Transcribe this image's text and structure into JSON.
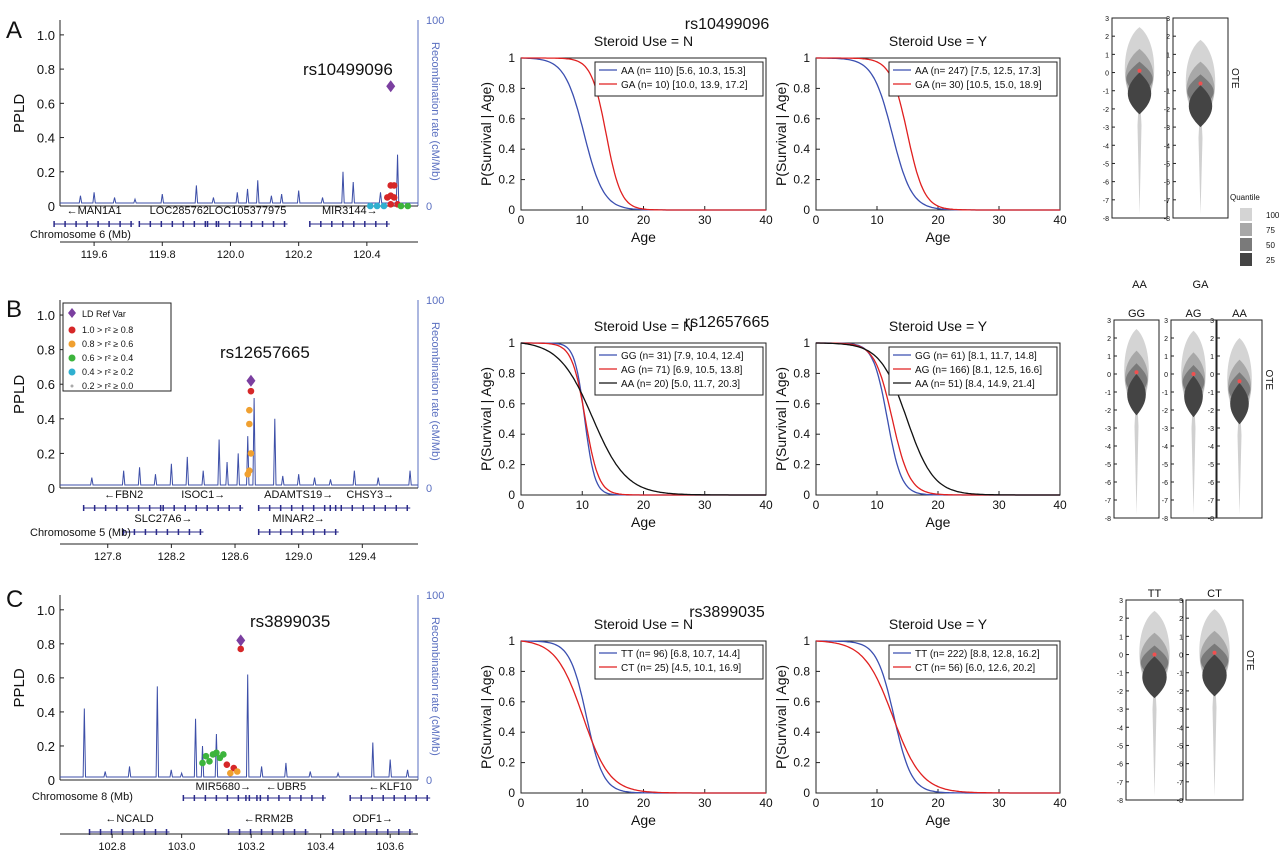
{
  "panels": [
    {
      "letter": "A",
      "snp": "rs10499096",
      "ld": {
        "ylabel": "PPLD",
        "y2label": "Recombination rate (cM/Mb)",
        "yticks": [
          "0",
          "0.2",
          "0.4",
          "0.6",
          "0.8",
          "1.0"
        ],
        "y2ticks": [
          "0",
          "100"
        ],
        "xticks": [
          "119.6",
          "119.8",
          "120.0",
          "120.2",
          "120.4"
        ],
        "xrange": [
          119.5,
          120.55
        ],
        "chrom_label": "Chromosome 6 (Mb)",
        "lead": {
          "x": 120.47,
          "y": 0.7
        },
        "points": [
          {
            "x": 120.46,
            "y": 0.05,
            "c": "red"
          },
          {
            "x": 120.47,
            "y": 0.06,
            "c": "red"
          },
          {
            "x": 120.48,
            "y": 0.05,
            "c": "red"
          },
          {
            "x": 120.47,
            "y": 0.01,
            "c": "red"
          },
          {
            "x": 120.49,
            "y": 0.01,
            "c": "red"
          },
          {
            "x": 120.48,
            "y": 0.12,
            "c": "red"
          },
          {
            "x": 120.47,
            "y": 0.12,
            "c": "red"
          },
          {
            "x": 120.5,
            "y": 0.0,
            "c": "green"
          },
          {
            "x": 120.52,
            "y": 0.0,
            "c": "green"
          },
          {
            "x": 120.43,
            "y": 0.0,
            "c": "cyan"
          },
          {
            "x": 120.45,
            "y": 0.0,
            "c": "cyan"
          },
          {
            "x": 120.41,
            "y": 0.0,
            "c": "cyan"
          }
        ],
        "spikes": [
          [
            119.56,
            0.06
          ],
          [
            119.6,
            0.08
          ],
          [
            119.66,
            0.05
          ],
          [
            119.72,
            0.04
          ],
          [
            119.8,
            0.07
          ],
          [
            119.9,
            0.12
          ],
          [
            119.95,
            0.05
          ],
          [
            120.02,
            0.08
          ],
          [
            120.05,
            0.1
          ],
          [
            120.08,
            0.15
          ],
          [
            120.12,
            0.06
          ],
          [
            120.15,
            0.07
          ],
          [
            120.2,
            0.09
          ],
          [
            120.27,
            0.05
          ],
          [
            120.33,
            0.2
          ],
          [
            120.36,
            0.14
          ],
          [
            120.44,
            0.08
          ],
          [
            120.49,
            0.3
          ]
        ],
        "genes": [
          {
            "name": "←MAN1A1",
            "x": 119.6,
            "row": 0
          },
          {
            "name": "LOC285762",
            "x": 119.85,
            "row": 0
          },
          {
            "name": "LOC105377975",
            "x": 120.05,
            "row": 0
          },
          {
            "name": "MIR3144→",
            "x": 120.35,
            "row": 0
          }
        ]
      },
      "surv": {
        "title": "rs10499096",
        "xlabel": "Age",
        "ylabel": "P(Survival | Age)",
        "xticks": [
          "0",
          "10",
          "20",
          "30",
          "40"
        ],
        "yticks": [
          "0",
          "0.2",
          "0.4",
          "0.6",
          "0.8",
          "1"
        ],
        "subplots": [
          {
            "title": "Steroid Use = N",
            "legend": [
              {
                "label": "AA (n= 110) [5.6, 10.3, 15.3]",
                "color": "#3b4fb0",
                "mu": 10.3,
                "s": 2.9
              },
              {
                "label": "GA (n=  10) [10.0, 13.9, 17.2]",
                "color": "#e02020",
                "mu": 13.9,
                "s": 2.2
              }
            ]
          },
          {
            "title": "Steroid Use = Y",
            "legend": [
              {
                "label": "AA (n= 247) [7.5, 12.5, 17.3]",
                "color": "#3b4fb0",
                "mu": 12.5,
                "s": 2.9
              },
              {
                "label": "GA (n=  30) [10.5, 15.0, 18.9]",
                "color": "#e02020",
                "mu": 15.0,
                "s": 2.5
              }
            ]
          }
        ]
      },
      "violin": {
        "ylabel": "OTE",
        "yticks": [
          "3",
          "2",
          "1",
          "0",
          "-1",
          "-2",
          "-3",
          "-4",
          "-5",
          "-6",
          "-7",
          "-8"
        ],
        "groups": [
          {
            "label": "AA",
            "top": "",
            "median": 0.1
          },
          {
            "label": "GA",
            "top": "",
            "median": -0.6
          }
        ],
        "labels_below": true,
        "quantile_legend": {
          "title": "Quantile",
          "items": [
            "100",
            "75",
            "50",
            "25"
          ]
        }
      }
    },
    {
      "letter": "B",
      "snp": "rs12657665",
      "ld": {
        "ylabel": "PPLD",
        "y2label": "Recombination rate (cM/Mb)",
        "yticks": [
          "0",
          "0.2",
          "0.4",
          "0.6",
          "0.8",
          "1.0"
        ],
        "y2ticks": [
          "0",
          "100"
        ],
        "xticks": [
          "127.8",
          "128.2",
          "128.6",
          "129.0",
          "129.4"
        ],
        "xrange": [
          127.5,
          129.75
        ],
        "chrom_label": "Chromosome 5 (Mb)",
        "lead": {
          "x": 128.7,
          "y": 0.62
        },
        "points": [
          {
            "x": 128.69,
            "y": 0.45,
            "c": "orange"
          },
          {
            "x": 128.69,
            "y": 0.37,
            "c": "orange"
          },
          {
            "x": 128.7,
            "y": 0.2,
            "c": "orange"
          },
          {
            "x": 128.69,
            "y": 0.1,
            "c": "orange"
          },
          {
            "x": 128.68,
            "y": 0.08,
            "c": "orange"
          },
          {
            "x": 128.7,
            "y": 0.56,
            "c": "red"
          }
        ],
        "spikes": [
          [
            127.7,
            0.06
          ],
          [
            127.9,
            0.1
          ],
          [
            128.0,
            0.12
          ],
          [
            128.1,
            0.08
          ],
          [
            128.2,
            0.14
          ],
          [
            128.3,
            0.18
          ],
          [
            128.4,
            0.1
          ],
          [
            128.5,
            0.28
          ],
          [
            128.55,
            0.15
          ],
          [
            128.62,
            0.2
          ],
          [
            128.68,
            0.3
          ],
          [
            128.72,
            0.52
          ],
          [
            128.85,
            0.4
          ],
          [
            128.9,
            0.07
          ],
          [
            129.0,
            0.08
          ],
          [
            129.1,
            0.06
          ],
          [
            129.2,
            0.05
          ],
          [
            129.35,
            0.1
          ],
          [
            129.5,
            0.06
          ],
          [
            129.7,
            0.1
          ]
        ],
        "genes": [
          {
            "name": "←FBN2",
            "x": 127.9,
            "row": 0
          },
          {
            "name": "ISOC1→",
            "x": 128.4,
            "row": 0
          },
          {
            "name": "ADAMTS19→",
            "x": 129.0,
            "row": 0
          },
          {
            "name": "CHSY3→",
            "x": 129.45,
            "row": 0
          },
          {
            "name": "SLC27A6→",
            "x": 128.15,
            "row": 1
          },
          {
            "name": "MINAR2→",
            "x": 129.0,
            "row": 1
          }
        ],
        "legend": {
          "title": "LD Ref Var",
          "items": [
            "1.0 > r² ≥ 0.8",
            "0.8 > r² ≥ 0.6",
            "0.6 > r² ≥ 0.4",
            "0.4 > r² ≥ 0.2",
            "0.2 > r² ≥ 0.0"
          ]
        }
      },
      "surv": {
        "title": "rs12657665",
        "xlabel": "Age",
        "ylabel": "P(Survival | Age)",
        "xticks": [
          "0",
          "10",
          "20",
          "30",
          "40"
        ],
        "yticks": [
          "0",
          "0.2",
          "0.4",
          "0.6",
          "0.8",
          "1"
        ],
        "subplots": [
          {
            "title": "Steroid Use = N",
            "legend": [
              {
                "label": "GG (n= 31) [7.9, 10.4, 12.4]",
                "color": "#3b4fb0",
                "mu": 10.4,
                "s": 1.5
              },
              {
                "label": "AG (n= 71) [6.9, 10.5, 13.8]",
                "color": "#e02020",
                "mu": 10.5,
                "s": 2.0
              },
              {
                "label": "AA (n= 20) [5.0, 11.7, 20.3]",
                "color": "#111111",
                "mu": 11.7,
                "s": 5.0
              }
            ]
          },
          {
            "title": "Steroid Use = Y",
            "legend": [
              {
                "label": "GG (n=  61) [8.1, 11.7, 14.8]",
                "color": "#3b4fb0",
                "mu": 11.7,
                "s": 2.1
              },
              {
                "label": "AG (n= 166) [8.1, 12.5, 16.6]",
                "color": "#e02020",
                "mu": 12.5,
                "s": 2.6
              },
              {
                "label": "AA (n=  51) [8.4, 14.9, 21.4]",
                "color": "#111111",
                "mu": 14.9,
                "s": 4.0
              }
            ]
          }
        ]
      },
      "violin": {
        "ylabel": "OTE",
        "yticks": [
          "3",
          "2",
          "1",
          "0",
          "-1",
          "-2",
          "-3",
          "-4",
          "-5",
          "-6",
          "-7",
          "-8"
        ],
        "groups": [
          {
            "label": "GG",
            "top": "",
            "median": 0.1
          },
          {
            "label": "AG",
            "top": "",
            "median": 0.0
          },
          {
            "label": "AA",
            "top": "",
            "median": -0.4
          }
        ],
        "labels_below": false
      }
    },
    {
      "letter": "C",
      "snp": "rs3899035",
      "ld": {
        "ylabel": "PPLD",
        "y2label": "Recombination rate (cM/Mb)",
        "yticks": [
          "0",
          "0.2",
          "0.4",
          "0.6",
          "0.8",
          "1.0"
        ],
        "y2ticks": [
          "0",
          "100"
        ],
        "xticks": [
          "102.8",
          "103.0",
          "103.2",
          "103.4",
          "103.6"
        ],
        "xrange": [
          102.65,
          103.68
        ],
        "chrom_label": "Chromosome 8 (Mb)",
        "lead": {
          "x": 103.17,
          "y": 0.82
        },
        "points": [
          {
            "x": 103.17,
            "y": 0.77,
            "c": "red"
          },
          {
            "x": 103.07,
            "y": 0.14,
            "c": "green"
          },
          {
            "x": 103.09,
            "y": 0.15,
            "c": "green"
          },
          {
            "x": 103.11,
            "y": 0.13,
            "c": "green"
          },
          {
            "x": 103.06,
            "y": 0.1,
            "c": "green"
          },
          {
            "x": 103.08,
            "y": 0.11,
            "c": "green"
          },
          {
            "x": 103.1,
            "y": 0.16,
            "c": "green"
          },
          {
            "x": 103.12,
            "y": 0.15,
            "c": "green"
          },
          {
            "x": 103.13,
            "y": 0.09,
            "c": "red"
          },
          {
            "x": 103.15,
            "y": 0.07,
            "c": "red"
          },
          {
            "x": 103.14,
            "y": 0.04,
            "c": "orange"
          },
          {
            "x": 103.16,
            "y": 0.05,
            "c": "orange"
          }
        ],
        "spikes": [
          [
            102.72,
            0.42
          ],
          [
            102.78,
            0.05
          ],
          [
            102.85,
            0.08
          ],
          [
            102.93,
            0.55
          ],
          [
            102.97,
            0.06
          ],
          [
            103.0,
            0.04
          ],
          [
            103.04,
            0.36
          ],
          [
            103.06,
            0.2
          ],
          [
            103.1,
            0.27
          ],
          [
            103.19,
            0.62
          ],
          [
            103.23,
            0.08
          ],
          [
            103.3,
            0.1
          ],
          [
            103.37,
            0.05
          ],
          [
            103.45,
            0.04
          ],
          [
            103.55,
            0.22
          ],
          [
            103.6,
            0.12
          ],
          [
            103.65,
            0.06
          ]
        ],
        "genes": [
          {
            "name": "MIR5680→",
            "x": 103.12,
            "row": 0
          },
          {
            "name": "←UBR5",
            "x": 103.3,
            "row": 0
          },
          {
            "name": "←KLF10",
            "x": 103.6,
            "row": 0
          },
          {
            "name": "←NCALD",
            "x": 102.85,
            "row": 1
          },
          {
            "name": "←RRM2B",
            "x": 103.25,
            "row": 1
          },
          {
            "name": "ODF1→",
            "x": 103.55,
            "row": 1
          }
        ]
      },
      "surv": {
        "title": "rs3899035",
        "xlabel": "Age",
        "ylabel": "P(Survival | Age)",
        "xticks": [
          "0",
          "10",
          "20",
          "30",
          "40"
        ],
        "yticks": [
          "0",
          "0.2",
          "0.4",
          "0.6",
          "0.8",
          "1"
        ],
        "subplots": [
          {
            "title": "Steroid Use = N",
            "legend": [
              {
                "label": "TT (n= 96) [6.8, 10.7, 14.4]",
                "color": "#3b4fb0",
                "mu": 10.7,
                "s": 2.5
              },
              {
                "label": "CT (n= 25) [4.5, 10.1, 16.9]",
                "color": "#e02020",
                "mu": 10.1,
                "s": 4.0
              }
            ]
          },
          {
            "title": "Steroid Use = Y",
            "legend": [
              {
                "label": "TT (n= 222) [8.8, 12.8, 16.2]",
                "color": "#3b4fb0",
                "mu": 12.8,
                "s": 2.6
              },
              {
                "label": "CT (n=  56) [6.0, 12.6, 20.2]",
                "color": "#e02020",
                "mu": 12.6,
                "s": 4.3
              }
            ]
          }
        ]
      },
      "violin": {
        "ylabel": "OTE",
        "yticks": [
          "3",
          "2",
          "1",
          "0",
          "-1",
          "-2",
          "-3",
          "-4",
          "-5",
          "-6",
          "-7",
          "-8"
        ],
        "groups": [
          {
            "label": "TT",
            "top": "",
            "median": 0.0
          },
          {
            "label": "CT",
            "top": "",
            "median": 0.1
          }
        ],
        "labels_below": false
      }
    }
  ],
  "colors": {
    "recomb": "#3d4fa8",
    "axis_right": "#5a6fc0",
    "red": "#d62728",
    "orange": "#f0a030",
    "green": "#3cb43c",
    "cyan": "#30b0d0",
    "purple": "#7b3fa0",
    "gene": "#2a2a8a"
  },
  "chart_data": [
    {
      "type": "line",
      "title": "rs10499096",
      "subplots": [
        "Steroid Use = N",
        "Steroid Use = Y"
      ],
      "xlabel": "Age",
      "ylabel": "P(Survival | Age)",
      "xlim": [
        0,
        40
      ],
      "ylim": [
        0,
        1
      ],
      "series": [
        {
          "name": "AA (n= 110) [5.6, 10.3, 15.3]"
        },
        {
          "name": "GA (n=  10) [10.0, 13.9, 17.2]"
        },
        {
          "name": "AA (n= 247) [7.5, 12.5, 17.3]"
        },
        {
          "name": "GA (n=  30) [10.5, 15.0, 18.9]"
        }
      ]
    },
    {
      "type": "line",
      "title": "rs12657665",
      "subplots": [
        "Steroid Use = N",
        "Steroid Use = Y"
      ],
      "xlabel": "Age",
      "ylabel": "P(Survival | Age)",
      "xlim": [
        0,
        40
      ],
      "ylim": [
        0,
        1
      ]
    },
    {
      "type": "line",
      "title": "rs3899035",
      "subplots": [
        "Steroid Use = N",
        "Steroid Use = Y"
      ],
      "xlabel": "Age",
      "ylabel": "P(Survival | Age)",
      "xlim": [
        0,
        40
      ],
      "ylim": [
        0,
        1
      ]
    }
  ]
}
